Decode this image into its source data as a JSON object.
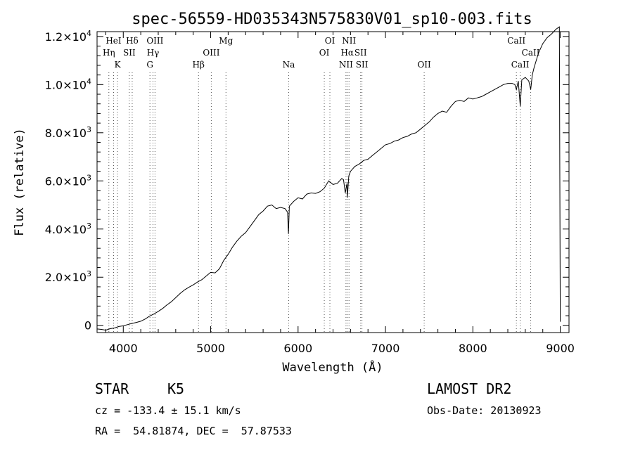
{
  "chart_data": {
    "type": "line",
    "title": "spec-56559-HD035343N575830V01_sp10-003.fits",
    "xlabel": "Wavelength (Å)",
    "ylabel": "Flux (relative)",
    "xlim": [
      3700,
      9100
    ],
    "ylim": [
      -300,
      12200
    ],
    "xticks": [
      4000,
      5000,
      6000,
      7000,
      8000,
      9000
    ],
    "xtick_labels": [
      "4000",
      "5000",
      "6000",
      "7000",
      "8000",
      "9000"
    ],
    "yticks": [
      0,
      2000,
      4000,
      6000,
      8000,
      10000,
      12000
    ],
    "ytick_labels": [
      {
        "mant": "0",
        "exp": ""
      },
      {
        "mant": "2.0×10",
        "exp": "3"
      },
      {
        "mant": "4.0×10",
        "exp": "3"
      },
      {
        "mant": "6.0×10",
        "exp": "3"
      },
      {
        "mant": "8.0×10",
        "exp": "3"
      },
      {
        "mant": "1.0×10",
        "exp": "4"
      },
      {
        "mant": "1.2×10",
        "exp": "4"
      }
    ],
    "grid": false,
    "series": [
      {
        "x": [
          3700,
          3750,
          3800,
          3850,
          3900,
          3950,
          4000,
          4050,
          4100,
          4150,
          4200,
          4250,
          4300,
          4350,
          4400,
          4450,
          4500,
          4550,
          4600,
          4650,
          4700,
          4750,
          4800,
          4850,
          4900,
          4950,
          5000,
          5050,
          5100,
          5150,
          5200,
          5250,
          5300,
          5350,
          5400,
          5450,
          5500,
          5550,
          5600,
          5650,
          5700,
          5750,
          5800,
          5850,
          5880,
          5890,
          5900,
          5950,
          6000,
          6050,
          6100,
          6150,
          6200,
          6250,
          6300,
          6350,
          6400,
          6450,
          6500,
          6520,
          6540,
          6560,
          6563,
          6580,
          6600,
          6650,
          6700,
          6750,
          6800,
          6850,
          6900,
          6950,
          7000,
          7050,
          7100,
          7150,
          7200,
          7250,
          7300,
          7350,
          7400,
          7450,
          7500,
          7550,
          7600,
          7650,
          7700,
          7750,
          7800,
          7850,
          7900,
          7950,
          8000,
          8050,
          8100,
          8150,
          8200,
          8250,
          8300,
          8350,
          8400,
          8450,
          8480,
          8498,
          8520,
          8542,
          8560,
          8600,
          8640,
          8662,
          8680,
          8700,
          8750,
          8800,
          8850,
          8900,
          8950,
          8990,
          9000
        ],
        "y": [
          -150,
          -170,
          -200,
          -140,
          -110,
          -50,
          -20,
          30,
          80,
          120,
          170,
          260,
          380,
          470,
          580,
          700,
          850,
          980,
          1150,
          1320,
          1470,
          1580,
          1680,
          1800,
          1900,
          2050,
          2200,
          2180,
          2350,
          2700,
          2950,
          3250,
          3500,
          3700,
          3850,
          4100,
          4350,
          4600,
          4750,
          4950,
          5000,
          4850,
          4900,
          4850,
          4700,
          3800,
          4950,
          5150,
          5300,
          5250,
          5450,
          5500,
          5480,
          5550,
          5700,
          6000,
          5850,
          5900,
          6100,
          6050,
          5500,
          5900,
          5300,
          6200,
          6400,
          6600,
          6700,
          6850,
          6900,
          7050,
          7200,
          7350,
          7500,
          7550,
          7650,
          7700,
          7800,
          7850,
          7950,
          8000,
          8150,
          8300,
          8450,
          8650,
          8800,
          8900,
          8850,
          9100,
          9300,
          9350,
          9300,
          9450,
          9400,
          9450,
          9500,
          9600,
          9700,
          9800,
          9900,
          10000,
          10050,
          10050,
          10000,
          9800,
          10150,
          9100,
          10200,
          10300,
          10150,
          9800,
          10400,
          10700,
          11300,
          11700,
          11950,
          12100,
          12300,
          12400,
          150
        ]
      }
    ],
    "line_markers": [
      {
        "w": 3889,
        "label": "HeI",
        "row": 0
      },
      {
        "w": 3835,
        "label": "Hη",
        "row": 1
      },
      {
        "w": 3934,
        "label": "K",
        "row": 2
      },
      {
        "w": 4102,
        "label": "Hδ",
        "row": 0
      },
      {
        "w": 4069,
        "label": "SII",
        "row": 1
      },
      {
        "w": 4340,
        "label": "Hγ",
        "row": 1
      },
      {
        "w": 4363,
        "label": "OIII",
        "row": 0
      },
      {
        "w": 4305,
        "label": "G",
        "row": 2
      },
      {
        "w": 4861,
        "label": "Hβ",
        "row": 2
      },
      {
        "w": 5007,
        "label": "OIII",
        "row": 1
      },
      {
        "w": 5175,
        "label": "Mg",
        "row": 0
      },
      {
        "w": 5893,
        "label": "Na",
        "row": 2
      },
      {
        "w": 6300,
        "label": "OI",
        "row": 1
      },
      {
        "w": 6364,
        "label": "OI",
        "row": 0
      },
      {
        "w": 6548,
        "label": "NII",
        "row": 2
      },
      {
        "w": 6563,
        "label": "Hα",
        "row": 1
      },
      {
        "w": 6583,
        "label": "NII",
        "row": 0
      },
      {
        "w": 6716,
        "label": "SII",
        "row": 1
      },
      {
        "w": 6731,
        "label": "SII",
        "row": 2
      },
      {
        "w": 7443,
        "label": "OII",
        "row": 2
      },
      {
        "w": 8498,
        "label": "CaII",
        "row": 0
      },
      {
        "w": 8542,
        "label": "CaII",
        "row": 2
      },
      {
        "w": 8662,
        "label": "CaII",
        "row": 1
      }
    ]
  },
  "info": {
    "object_class": "STAR",
    "subclass": "K5",
    "survey": "LAMOST DR2",
    "redshift": "cz = -133.4 ± 15.1 km/s",
    "obs_date": "Obs-Date: 20130923",
    "coords": "RA =  54.81874, DEC =  57.87533"
  }
}
